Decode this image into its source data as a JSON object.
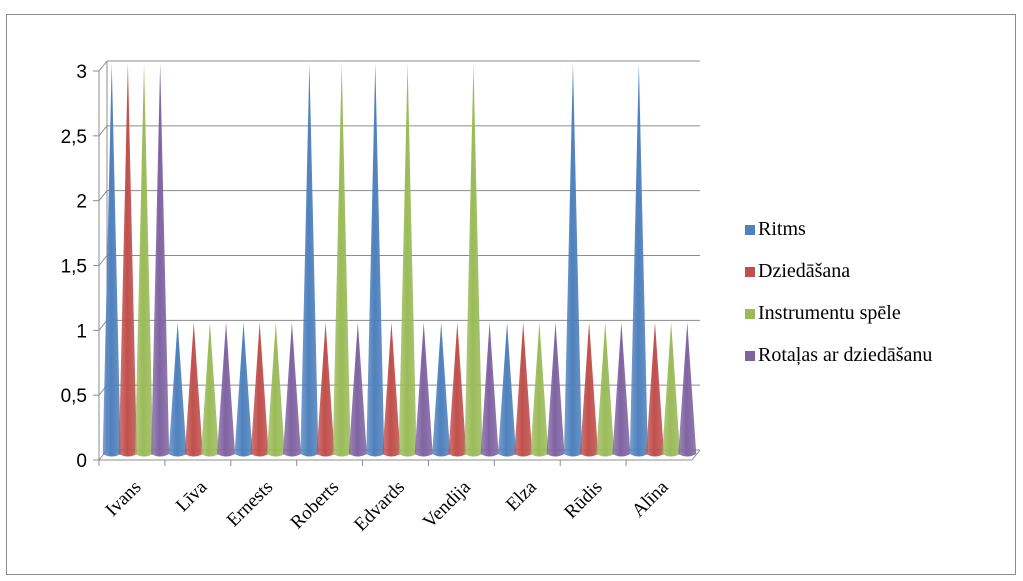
{
  "chart_data": {
    "type": "bar",
    "style": "3d-cone",
    "title": "",
    "xlabel": "",
    "ylabel": "",
    "categories": [
      "Ivans",
      "Līva",
      "Ernests",
      "Roberts",
      "Edvards",
      "Vendija",
      "Elza",
      "Rūdis",
      "Alīna"
    ],
    "series": [
      {
        "name": "Ritms",
        "values": [
          3,
          1,
          1,
          3,
          3,
          1,
          1,
          3,
          3
        ]
      },
      {
        "name": "Dziedāšana",
        "values": [
          3,
          1,
          1,
          1,
          1,
          1,
          1,
          1,
          1
        ]
      },
      {
        "name": "Instrumentu spēle",
        "values": [
          3,
          1,
          1,
          3,
          3,
          3,
          1,
          1,
          1
        ]
      },
      {
        "name": "Rotaļas ar dziedāšanu",
        "values": [
          3,
          1,
          1,
          1,
          1,
          1,
          1,
          1,
          1
        ]
      }
    ],
    "ylim": [
      0,
      3
    ],
    "yticks": [
      "0",
      "0,5",
      "1",
      "1,5",
      "2",
      "2,5",
      "3"
    ],
    "grid": true,
    "legend_position": "right",
    "colors": [
      "#4f81bd",
      "#c0504d",
      "#9bbb59",
      "#8064a2"
    ]
  }
}
